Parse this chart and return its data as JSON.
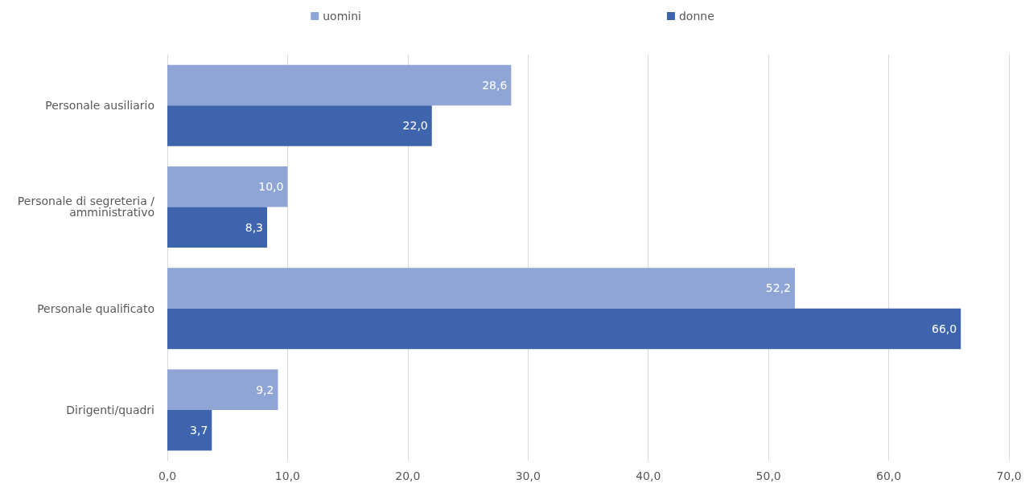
{
  "chart_data": {
    "type": "bar",
    "orientation": "horizontal",
    "categories": [
      "Personale ausiliario",
      "Personale di segreteria /amministrativo",
      "Personale qualificato",
      "Dirigenti/quadri"
    ],
    "series": [
      {
        "name": "uomini",
        "color": "#8fa5d6",
        "values": [
          28.6,
          10.0,
          52.2,
          9.2
        ],
        "value_labels": [
          "28,6",
          "10,0",
          "52,2",
          "9,2"
        ]
      },
      {
        "name": "donne",
        "color": "#3d64ad",
        "values": [
          22.0,
          8.3,
          66.0,
          3.7
        ],
        "value_labels": [
          "22,0",
          "8,3",
          "66,0",
          "3,7"
        ]
      }
    ],
    "xlim": [
      0,
      70
    ],
    "xticks": [
      {
        "value": 0,
        "label": "0,0"
      },
      {
        "value": 10,
        "label": "10,0"
      },
      {
        "value": 20,
        "label": "20,0"
      },
      {
        "value": 30,
        "label": "30,0"
      },
      {
        "value": 40,
        "label": "40,0"
      },
      {
        "value": 50,
        "label": "50,0"
      },
      {
        "value": 60,
        "label": "60,0"
      },
      {
        "value": 70,
        "label": "70,0"
      }
    ],
    "grid": "x",
    "legend": "top"
  }
}
